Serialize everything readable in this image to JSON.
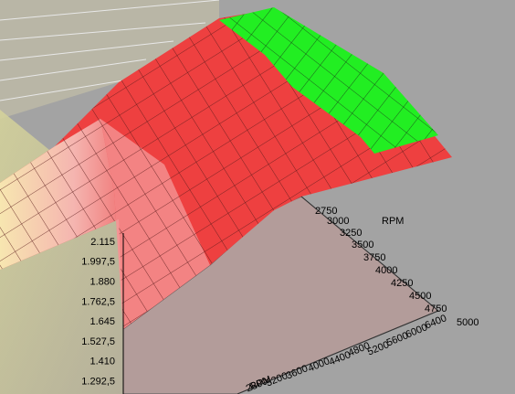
{
  "z_axis": {
    "ticks": [
      "2.115",
      "1.997,5",
      "1.880",
      "1.762,5",
      "1.645",
      "1.527,5",
      "1.410",
      "1.292,5"
    ]
  },
  "rpm_axis": {
    "title": "RPM",
    "ticks": [
      "2750",
      "3000",
      "3250",
      "3500",
      "3750",
      "4000",
      "4250",
      "4500",
      "4750",
      "5000"
    ]
  },
  "second_axis": {
    "title": "RPM",
    "ticks": [
      "6400",
      "6000",
      "5600",
      "5200",
      "4800",
      "4400",
      "4000",
      "3600",
      "3200",
      "2800"
    ]
  }
}
